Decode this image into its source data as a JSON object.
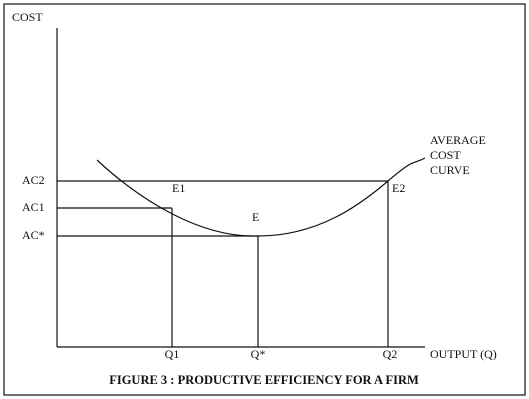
{
  "axes": {
    "y_label": "COST",
    "x_label": "OUTPUT (Q)"
  },
  "y_levels": [
    "AC2",
    "AC1",
    "AC*"
  ],
  "x_levels": [
    "Q1",
    "Q*",
    "Q2"
  ],
  "points": [
    "E1",
    "E",
    "E2"
  ],
  "curve_label": [
    "AVERAGE",
    "COST",
    "CURVE"
  ],
  "caption": "FIGURE 3 : PRODUCTIVE EFFICIENCY FOR A FIRM"
}
